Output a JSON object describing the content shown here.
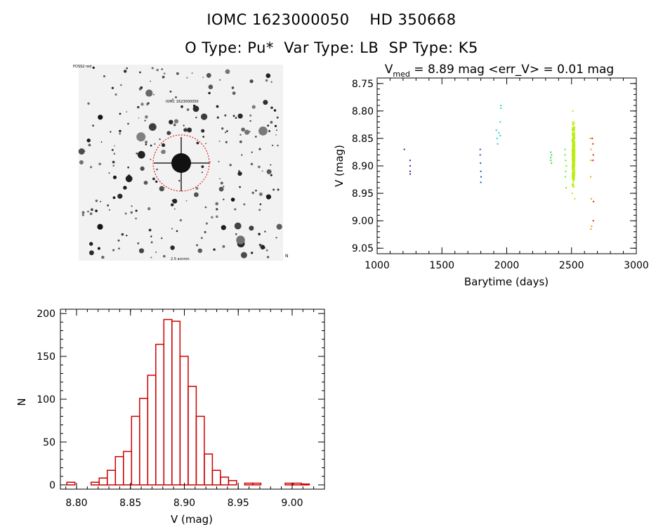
{
  "header": {
    "title_line1": "IOMC 1623000050    HD 350668",
    "title_line2": "O Type: Pu*  Var Type: LB  SP Type: K5"
  },
  "image_panel": {
    "label_top_left": "POSS2 red",
    "label_target": "IOMC 1623000050",
    "label_bottom": "2.5 arcmin",
    "label_corner_right": "N",
    "circle_color": "#dd0000"
  },
  "chart_data": [
    {
      "type": "scatter",
      "title_parts": {
        "v": "V",
        "sub": "med",
        "rest": " = 8.89 mag <err_V> = 0.01 mag"
      },
      "xlabel": "Barytime (days)",
      "ylabel": "V (mag)",
      "xlim": [
        1000,
        3000
      ],
      "ylim": [
        9.06,
        8.74
      ],
      "x_ticks": [
        1000,
        1500,
        2000,
        2500,
        3000
      ],
      "y_ticks": [
        "8.75",
        "8.80",
        "8.85",
        "8.90",
        "8.95",
        "9.00",
        "9.05"
      ],
      "groups": [
        {
          "color": "#55208a",
          "x": [
            1210,
            1255,
            1255,
            1255,
            1255
          ],
          "y": [
            8.87,
            8.89,
            8.9,
            8.91,
            8.915
          ]
        },
        {
          "color": "#2050c8",
          "x": [
            1795,
            1795,
            1798,
            1800,
            1802,
            1800
          ],
          "y": [
            8.87,
            8.88,
            8.895,
            8.91,
            8.92,
            8.93
          ]
        },
        {
          "color": "#20d8d0",
          "x": [
            1920,
            1925,
            1930,
            1940,
            1950,
            1955,
            1955,
            1950
          ],
          "y": [
            8.835,
            8.85,
            8.86,
            8.84,
            8.82,
            8.79,
            8.795,
            8.845
          ]
        },
        {
          "color": "#22dd44",
          "x": [
            2340,
            2340,
            2345,
            2345,
            2340
          ],
          "y": [
            8.875,
            8.885,
            8.88,
            8.895,
            8.89
          ]
        },
        {
          "color": "#66ee22",
          "x": [
            2450,
            2450,
            2455,
            2460,
            2455,
            2452,
            2458
          ],
          "y": [
            8.87,
            8.88,
            8.89,
            8.9,
            8.91,
            8.92,
            8.94
          ]
        },
        {
          "color": "#bbee11",
          "x": [
            2510,
            2520,
            2515,
            2505,
            2525
          ],
          "y": [
            8.8,
            8.82,
            8.83,
            8.95,
            8.96
          ]
        },
        {
          "color": "#f0a000",
          "x": [
            2645,
            2650,
            2650,
            2648,
            2652,
            2655,
            2650
          ],
          "y": [
            8.85,
            8.87,
            8.89,
            8.92,
            8.96,
            9.01,
            9.015
          ]
        },
        {
          "color": "#dd2200",
          "x": [
            2660,
            2665,
            2668,
            2665,
            2670,
            2668
          ],
          "y": [
            8.85,
            8.86,
            8.88,
            8.89,
            8.965,
            9.0
          ]
        }
      ],
      "dense_cluster": {
        "color": "#bbee11",
        "x_center": 2515,
        "x_spread": 18,
        "y_min": 8.81,
        "y_max": 8.945,
        "count": 420
      }
    },
    {
      "type": "bar",
      "subtype": "histogram",
      "xlabel": "V (mag)",
      "ylabel": "N",
      "xlim": [
        8.785,
        9.03
      ],
      "ylim": [
        -5,
        205
      ],
      "x_ticks": [
        "8.80",
        "8.85",
        "8.90",
        "8.95",
        "9.00"
      ],
      "y_ticks": [
        "0",
        "50",
        "100",
        "150",
        "200"
      ],
      "bin_width": 0.0075,
      "bin_start": 8.791,
      "counts": [
        3,
        0,
        0,
        3,
        8,
        17,
        33,
        39,
        80,
        101,
        128,
        164,
        193,
        191,
        150,
        115,
        80,
        36,
        17,
        9,
        5,
        0,
        2,
        2,
        0,
        0,
        0,
        2,
        2,
        1
      ],
      "bar_color": "#cc0000"
    }
  ]
}
